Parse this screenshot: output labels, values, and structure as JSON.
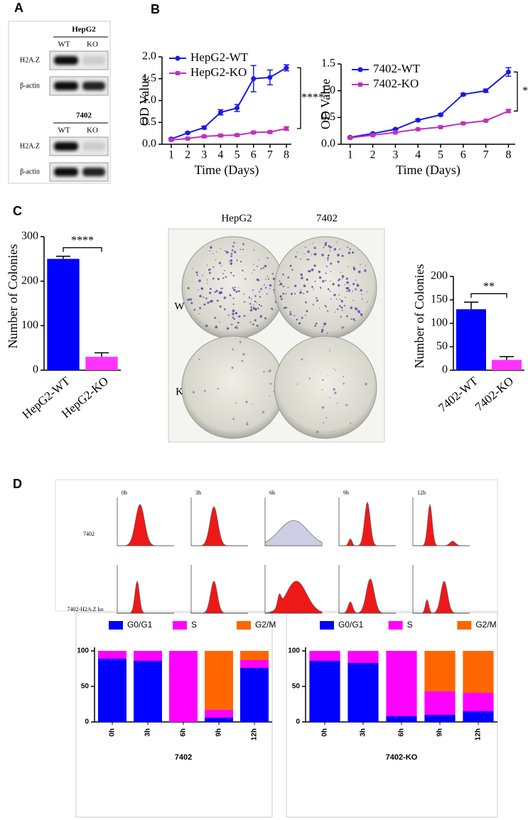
{
  "panel_labels": [
    "A",
    "B",
    "C",
    "D"
  ],
  "blot": {
    "groups": [
      {
        "cell": "HepG2",
        "lanes": [
          "WT",
          "KO"
        ],
        "rows": [
          "H2A.Z",
          "β-actin"
        ]
      },
      {
        "cell": "7402",
        "lanes": [
          "WT",
          "KO"
        ],
        "rows": [
          "H2A.Z",
          "β-actin"
        ]
      }
    ]
  },
  "colony_plates": {
    "columns": [
      "HepG2",
      "7402"
    ],
    "rows": [
      "WT",
      "KO"
    ]
  },
  "flow": {
    "times": [
      "0h",
      "3h",
      "6h",
      "9h",
      "12h"
    ],
    "rows": [
      "7402",
      "7402-H2A.Z ko"
    ]
  },
  "chart_data": [
    {
      "type": "line",
      "xlabel": "Time (Days)",
      "ylabel": "OD Value",
      "x": [
        1,
        2,
        3,
        4,
        5,
        6,
        7,
        8
      ],
      "xlim": [
        0.44,
        8.3
      ],
      "xticks": [
        1,
        2,
        3,
        4,
        5,
        6,
        7,
        8
      ],
      "ylim": [
        0,
        2
      ],
      "yticks": [
        {
          "value": 0,
          "label": "0.0"
        },
        0.5,
        {
          "value": 1,
          "label": "1.0"
        },
        1.5,
        {
          "value": 2,
          "label": "2.0"
        }
      ],
      "series": [
        {
          "name": "HepG2-WT",
          "color": "#1a1ae6",
          "marker": "circle",
          "values": [
            0.12,
            0.26,
            0.38,
            0.73,
            0.83,
            1.5,
            1.53,
            1.75
          ],
          "errors": [
            0.02,
            0.02,
            0.03,
            0.06,
            0.08,
            0.3,
            0.17,
            0.07
          ]
        },
        {
          "name": "HepG2-KO",
          "color": "#c030c0",
          "marker": "square",
          "values": [
            0.1,
            0.13,
            0.18,
            0.2,
            0.21,
            0.27,
            0.28,
            0.36
          ],
          "errors": [
            0.01,
            0.01,
            0.02,
            0.02,
            0.02,
            0.02,
            0.02,
            0.04
          ]
        }
      ],
      "annotation": "****"
    },
    {
      "type": "line",
      "xlabel": "Time (Days)",
      "ylabel": "OD Value",
      "x": [
        1,
        2,
        3,
        4,
        5,
        6,
        7,
        8
      ],
      "xlim": [
        0.6,
        8.3
      ],
      "xticks": [
        1,
        2,
        3,
        4,
        5,
        6,
        7,
        8
      ],
      "ylim": [
        0,
        1.5
      ],
      "yticks": [
        {
          "value": 0,
          "label": "0.0"
        },
        0.5,
        {
          "value": 1,
          "label": "1.0"
        },
        1.5
      ],
      "series": [
        {
          "name": "7402-WT",
          "color": "#1a1ae6",
          "marker": "circle",
          "values": [
            0.13,
            0.2,
            0.28,
            0.45,
            0.55,
            0.93,
            1.0,
            1.35
          ],
          "errors": [
            0.01,
            0.01,
            0.01,
            0.02,
            0.02,
            0.02,
            0.03,
            0.08
          ]
        },
        {
          "name": "7402-KO",
          "color": "#c030c0",
          "marker": "square",
          "values": [
            0.12,
            0.17,
            0.22,
            0.28,
            0.32,
            0.39,
            0.44,
            0.62
          ],
          "errors": [
            0.01,
            0.01,
            0.01,
            0.01,
            0.01,
            0.01,
            0.01,
            0.03
          ]
        }
      ],
      "annotation": "*"
    },
    {
      "type": "bar",
      "ylabel": "Number of Colonies",
      "categories": [
        "HepG2-WT",
        "HepG2-KO"
      ],
      "values": [
        250,
        30
      ],
      "errors": [
        6,
        9
      ],
      "colors": [
        "#0000ff",
        "#ff33ff"
      ],
      "ylim": [
        0,
        300
      ],
      "yticks": [
        0,
        100,
        200,
        300
      ],
      "annotation": "****"
    },
    {
      "type": "bar",
      "ylabel": "Number of Colonies",
      "categories": [
        "7402-WT",
        "7402-KO"
      ],
      "values": [
        130,
        22
      ],
      "errors": [
        15,
        7
      ],
      "colors": [
        "#0000ff",
        "#ff33ff"
      ],
      "ylim": [
        0,
        200
      ],
      "yticks": [
        0,
        50,
        100,
        150,
        200
      ],
      "annotation": "**"
    },
    {
      "type": "stacked_bar",
      "xlabel": "7402",
      "categories": [
        "0h",
        "3h",
        "6h",
        "9h",
        "12h"
      ],
      "ylim": [
        0,
        105
      ],
      "yticks": [
        0,
        50,
        100
      ],
      "series": [
        {
          "name": "G0/G1",
          "color": "#0000ff",
          "values": [
            89,
            86,
            0,
            6,
            76
          ]
        },
        {
          "name": "S",
          "color": "#ff00ff",
          "values": [
            11,
            14,
            100,
            11,
            11
          ]
        },
        {
          "name": "G2/M",
          "color": "#ff6600",
          "values": [
            0,
            0,
            0,
            83,
            13
          ]
        }
      ]
    },
    {
      "type": "stacked_bar",
      "xlabel": "7402-KO",
      "categories": [
        "0h",
        "3h",
        "6h",
        "9h",
        "12h"
      ],
      "ylim": [
        0,
        105
      ],
      "yticks": [
        0,
        50,
        100
      ],
      "series": [
        {
          "name": "G0/G1",
          "color": "#0000ff",
          "values": [
            86,
            83,
            8,
            10,
            15
          ]
        },
        {
          "name": "S",
          "color": "#ff00ff",
          "values": [
            14,
            17,
            92,
            33,
            26
          ]
        },
        {
          "name": "G2/M",
          "color": "#ff6600",
          "values": [
            0,
            0,
            0,
            57,
            59
          ]
        }
      ]
    }
  ]
}
